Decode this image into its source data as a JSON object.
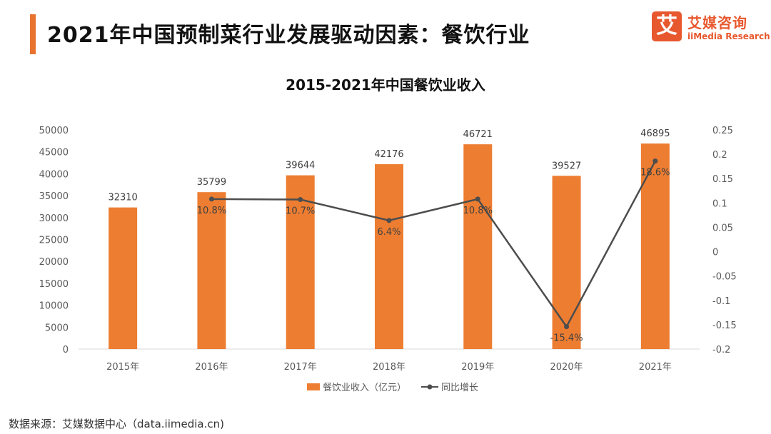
{
  "header": {
    "title": "2021年中国预制菜行业发展驱动因素：餐饮行业"
  },
  "logo": {
    "mark": "艾",
    "name_cn": "艾媒咨询",
    "name_en": "iiMedia Research"
  },
  "footer": {
    "source": "数据来源：艾媒数据中心（data.iimedia.cn)"
  },
  "colors": {
    "accent": "#e8732e",
    "bar": "#ed7d31",
    "line": "#4d4d4d"
  },
  "chart_data": {
    "type": "bar",
    "title": "2015-2021年中国餐饮业收入",
    "categories": [
      "2015年",
      "2016年",
      "2017年",
      "2018年",
      "2019年",
      "2020年",
      "2021年"
    ],
    "series": [
      {
        "name": "餐饮业收入（亿元）",
        "type": "bar",
        "axis": "left",
        "values": [
          32310,
          35799,
          39644,
          42176,
          46721,
          39527,
          46895
        ]
      },
      {
        "name": "同比增长",
        "type": "line",
        "axis": "right",
        "values": [
          null,
          0.108,
          0.107,
          0.064,
          0.108,
          -0.154,
          0.186
        ],
        "labels": [
          "",
          "10.8%",
          "10.7%",
          "6.4%",
          "10.8%",
          "-15.4%",
          "18.6%"
        ]
      }
    ],
    "y_left": {
      "range": [
        0,
        50000
      ],
      "ticks": [
        "0",
        "5000",
        "10000",
        "15000",
        "20000",
        "25000",
        "30000",
        "35000",
        "40000",
        "45000",
        "50000"
      ]
    },
    "y_right": {
      "range": [
        -0.2,
        0.25
      ],
      "ticks": [
        "-0.2",
        "-0.15",
        "-0.1",
        "-0.05",
        "0",
        "0.05",
        "0.1",
        "0.15",
        "0.2",
        "0.25"
      ]
    },
    "legend": "bottom",
    "grid": false
  }
}
